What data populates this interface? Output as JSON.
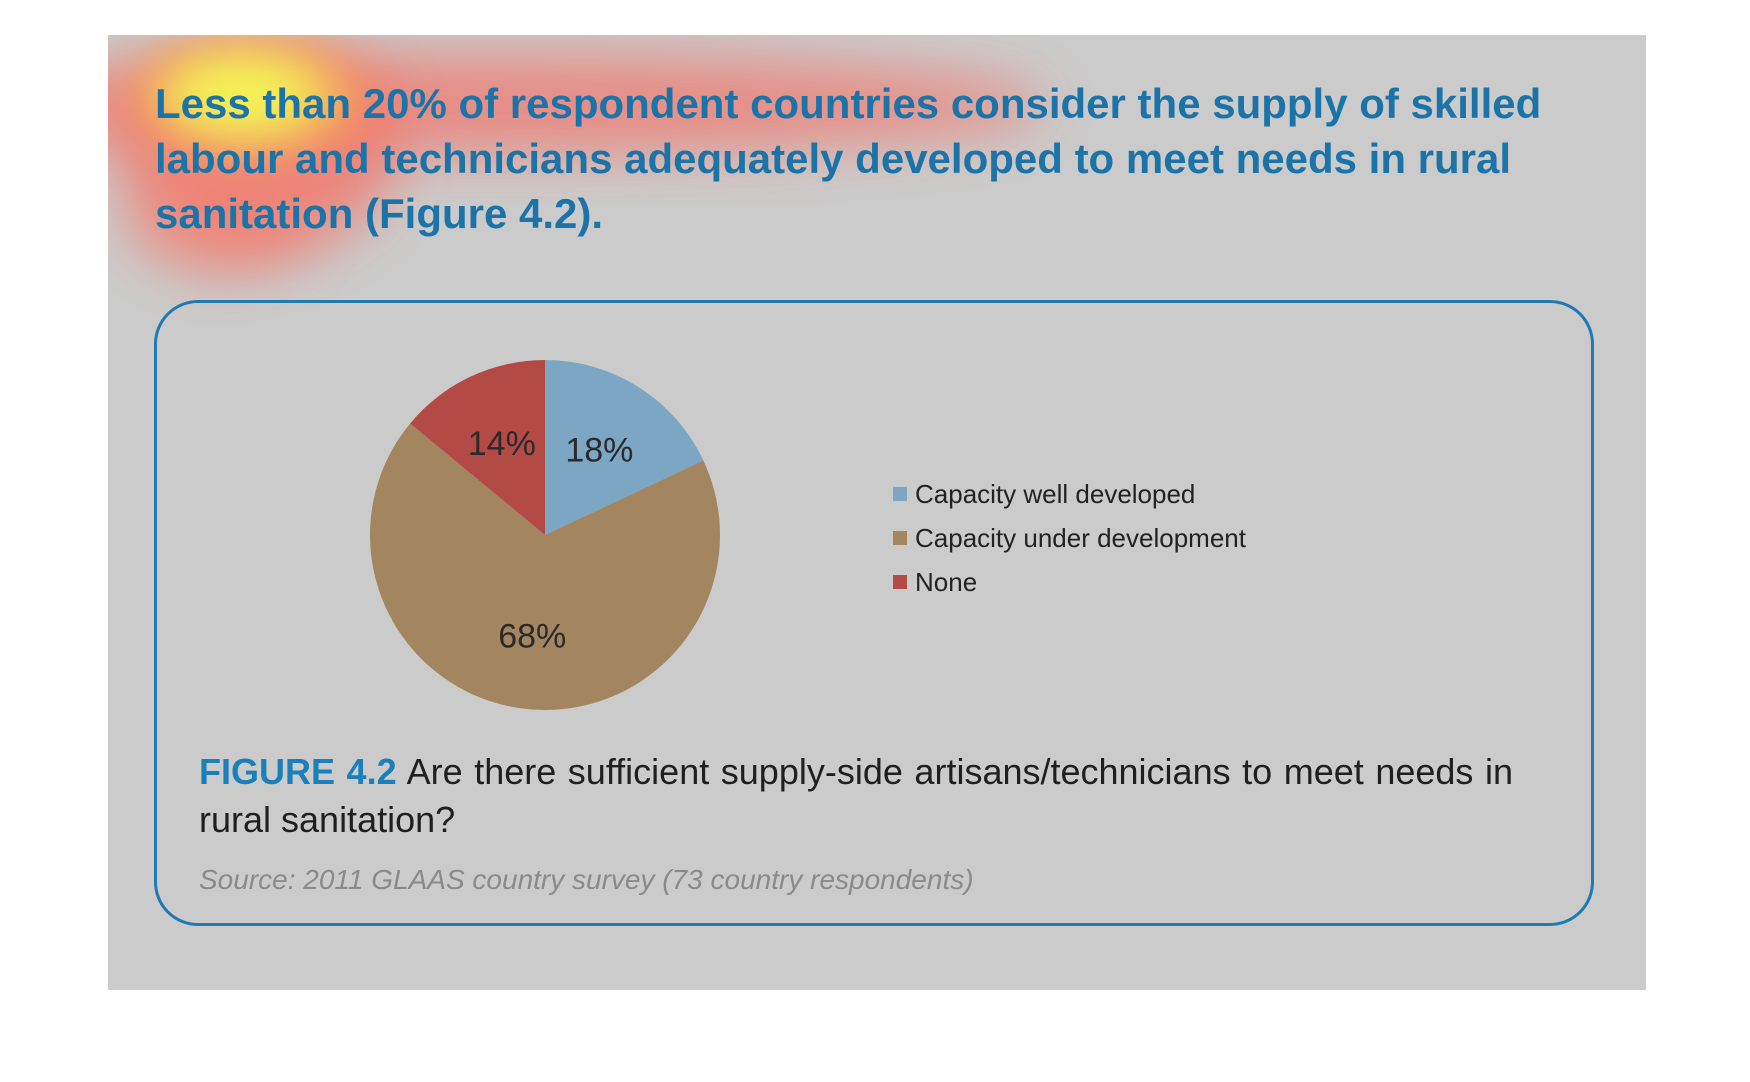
{
  "headline": "Less than 20% of respondent countries consider the supply of skilled labour and technicians adequately developed to meet needs in rural sanitation (Figure 4.2).",
  "chart_data": {
    "type": "pie",
    "categories": [
      "Capacity well developed",
      "Capacity under development",
      "None"
    ],
    "values": [
      18,
      68,
      14
    ],
    "labels": [
      "18%",
      "68%",
      "14%"
    ],
    "colors": [
      "#7ba6c4",
      "#a3865f",
      "#b34a46"
    ],
    "title": "",
    "legend_position": "right"
  },
  "figure": {
    "number": "FIGURE 4.2",
    "caption": "Are there sufficient supply-side artisans/technicians to meet needs in rural sanitation?",
    "source": "Source: 2011 GLAAS country survey (73 country respondents)"
  },
  "colors": {
    "background_panel": "#cbcbcb",
    "accent_blue": "#1b73a8",
    "heat_hot": "#ffff40",
    "heat_warm": "#ff5a4a"
  }
}
